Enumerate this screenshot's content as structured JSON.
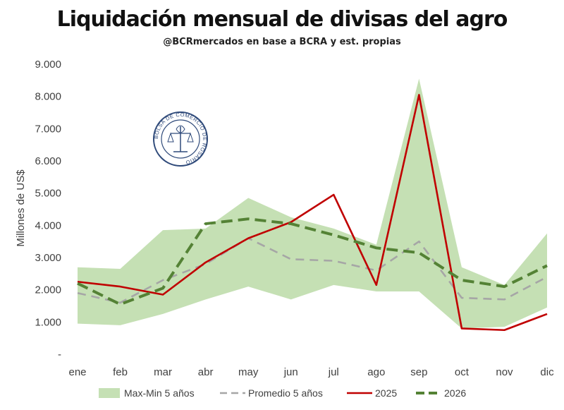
{
  "chart_data": {
    "type": "line",
    "title": "Liquidación mensual de divisas del agro",
    "subtitle": "@BCRmercados en base a BCRA y est. propias",
    "xlabel": "",
    "ylabel": "Millones de US$",
    "ylim": [
      0,
      9000
    ],
    "ytick_labels": [
      "-",
      "1.000",
      "2.000",
      "3.000",
      "4.000",
      "5.000",
      "6.000",
      "7.000",
      "8.000",
      "9.000"
    ],
    "categories": [
      "ene",
      "feb",
      "mar",
      "abr",
      "may",
      "jun",
      "jul",
      "ago",
      "sep",
      "oct",
      "nov",
      "dic"
    ],
    "band": {
      "name": "Max-Min 5 años",
      "max": [
        2700,
        2650,
        3850,
        3900,
        4850,
        4250,
        3900,
        3400,
        8550,
        2700,
        2150,
        3750
      ],
      "min": [
        950,
        900,
        1250,
        1700,
        2100,
        1700,
        2150,
        1950,
        1950,
        800,
        850,
        1450
      ],
      "color": "#c5e0b4"
    },
    "series": [
      {
        "name": "Promedio 5 años",
        "values": [
          1900,
          1600,
          2300,
          2800,
          3600,
          2950,
          2900,
          2600,
          3500,
          1750,
          1700,
          2400
        ],
        "color": "#a6a6a6",
        "style": "dashed"
      },
      {
        "name": "2025",
        "values": [
          2250,
          2100,
          1850,
          2850,
          3600,
          4100,
          4950,
          2150,
          8050,
          800,
          750,
          1250
        ],
        "color": "#c00000",
        "style": "solid"
      },
      {
        "name": "2026",
        "values": [
          2200,
          1550,
          2050,
          4050,
          4200,
          4050,
          3700,
          3300,
          3150,
          2300,
          2100,
          2750
        ],
        "color": "#548235",
        "style": "dashed"
      }
    ],
    "grid": false,
    "legend_position": "bottom"
  },
  "logo": {
    "text": "BOLSA DE COMERCIO DE ROSARIO",
    "color": "#2f4a7a"
  }
}
